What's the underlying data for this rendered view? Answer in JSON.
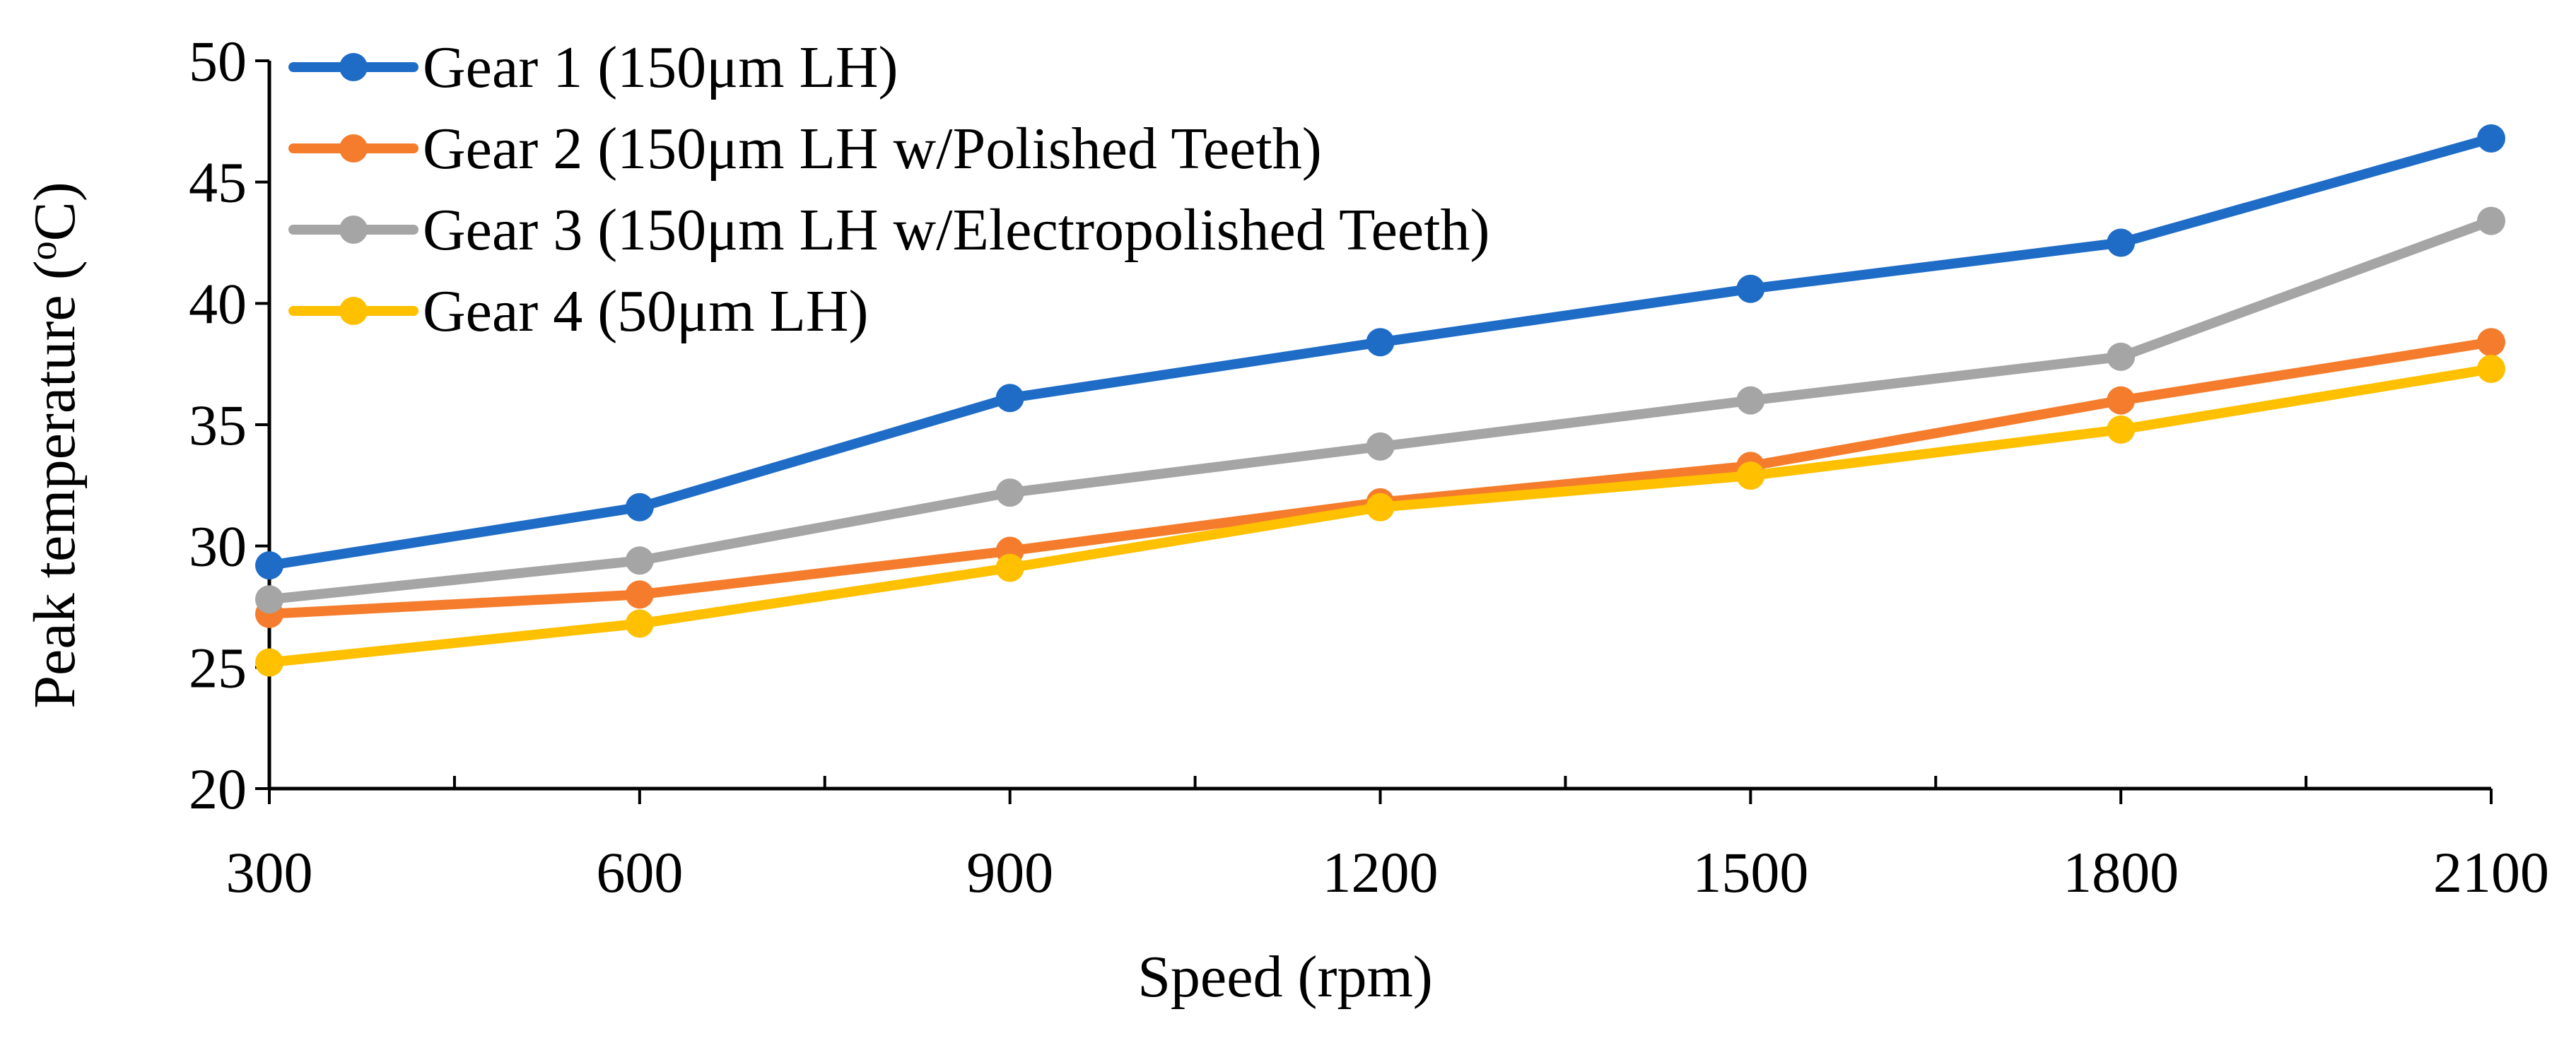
{
  "chart_data": {
    "type": "line",
    "title": "",
    "xlabel": "Speed (rpm)",
    "ylabel_main": "Peak temperature (",
    "ylabel_sup": "o",
    "ylabel_end": "C)",
    "categories": [
      "300",
      "600",
      "900",
      "1200",
      "1500",
      "1800",
      "2100"
    ],
    "ylim": [
      20,
      50
    ],
    "yticks": [
      "20",
      "25",
      "30",
      "35",
      "40",
      "45",
      "50"
    ],
    "grid": false,
    "legend_position": "top-left",
    "series": [
      {
        "name": "Gear 1 (150μm LH)",
        "color": "#1F6CC7",
        "values": [
          29.2,
          31.6,
          36.1,
          38.4,
          40.6,
          42.5,
          46.8
        ]
      },
      {
        "name": "Gear 2 (150μm LH w/Polished Teeth)",
        "color": "#F47C2C",
        "values": [
          27.2,
          28.0,
          29.8,
          31.8,
          33.3,
          36.0,
          38.4
        ]
      },
      {
        "name": "Gear 3 (150μm LH w/Electropolished Teeth)",
        "color": "#A5A5A5",
        "values": [
          27.8,
          29.4,
          32.2,
          34.1,
          36.0,
          37.8,
          43.4
        ]
      },
      {
        "name": "Gear 4 (50μm LH)",
        "color": "#FFC000",
        "values": [
          25.2,
          26.8,
          29.1,
          31.6,
          32.9,
          34.8,
          37.3
        ]
      }
    ]
  }
}
